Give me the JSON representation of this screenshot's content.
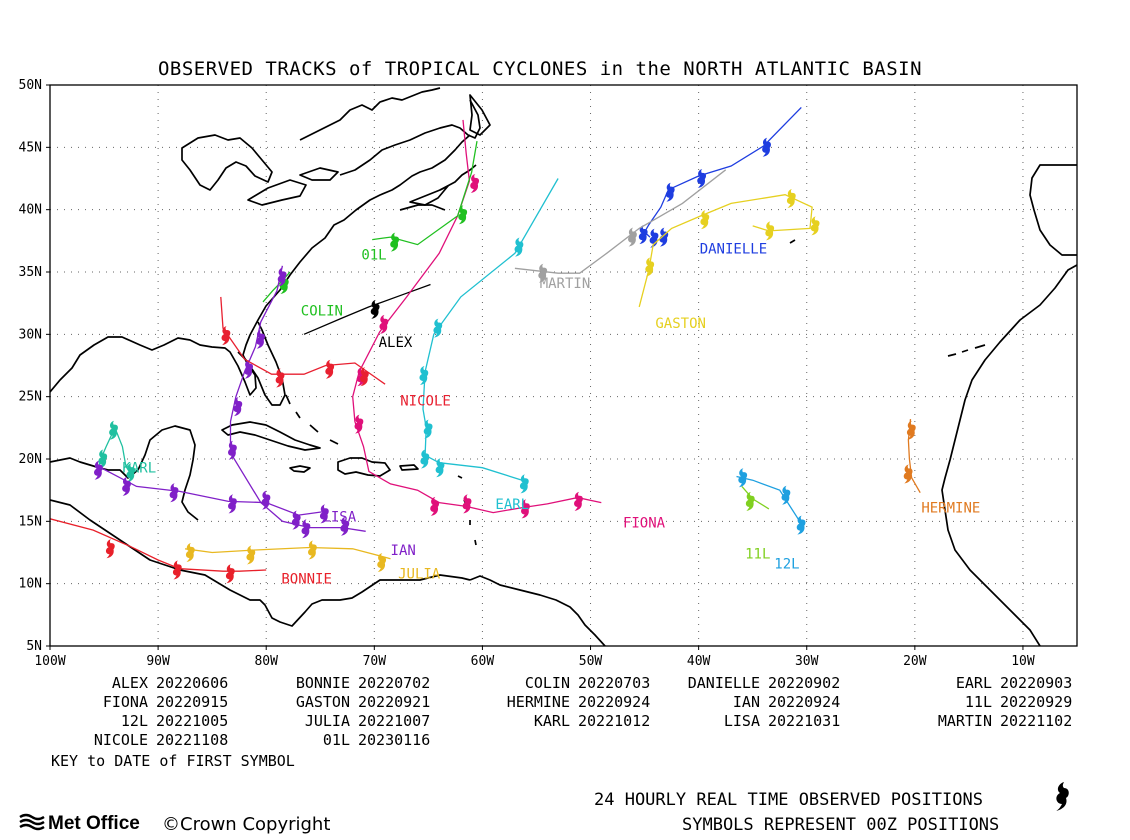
{
  "title": "OBSERVED TRACKS of TROPICAL CYCLONES in the NORTH ATLANTIC BASIN",
  "map": {
    "lon_range": [
      -100,
      -5
    ],
    "lat_range": [
      5,
      50
    ],
    "lon_ticks": [
      "100W",
      "90W",
      "80W",
      "70W",
      "60W",
      "50W",
      "40W",
      "30W",
      "20W",
      "10W"
    ],
    "lat_ticks": [
      "50N",
      "45N",
      "40N",
      "35N",
      "30N",
      "25N",
      "20N",
      "15N",
      "10N",
      "5N"
    ],
    "grid": true
  },
  "storms": [
    {
      "name": "ALEX",
      "color": "#000000",
      "label_pos": [
        -69.6,
        29.0
      ],
      "track": [
        [
          -76.5,
          30.0
        ],
        [
          -73.0,
          31.3
        ],
        [
          -70.5,
          32.2
        ],
        [
          -67.0,
          33.3
        ],
        [
          -64.8,
          34.0
        ]
      ],
      "symbols": [
        [
          -70.0,
          32.2
        ]
      ]
    },
    {
      "name": "BONNIE",
      "color": "#e8202a",
      "label_pos": [
        -78.6,
        10.0
      ],
      "track": [
        [
          -100,
          15.2
        ],
        [
          -96,
          14.3
        ],
        [
          -92.6,
          13.0
        ],
        [
          -90,
          11.9
        ],
        [
          -88,
          11.2
        ],
        [
          -84,
          11.0
        ],
        [
          -82.5,
          11.0
        ],
        [
          -80,
          11.1
        ]
      ],
      "symbols": [
        [
          -94.5,
          13.0
        ],
        [
          -88.3,
          11.3
        ],
        [
          -83.4,
          11.0
        ]
      ]
    },
    {
      "name": "COLIN",
      "color": "#20c020",
      "label_pos": [
        -76.8,
        31.5
      ],
      "track": [
        [
          -80.3,
          32.6
        ],
        [
          -79.4,
          33.5
        ],
        [
          -78.5,
          34.3
        ],
        [
          -77.8,
          35.0
        ]
      ],
      "symbols": [
        [
          -78.4,
          34.2
        ]
      ]
    },
    {
      "name": "DANIELLE",
      "color": "#1e3de0",
      "label_pos": [
        -39.9,
        36.5
      ],
      "track": [
        [
          -44.5,
          37.8
        ],
        [
          -45.0,
          38.2
        ],
        [
          -44.6,
          38.8
        ],
        [
          -43.5,
          40.2
        ],
        [
          -42.8,
          41.6
        ],
        [
          -40.0,
          42.7
        ],
        [
          -37.0,
          43.5
        ],
        [
          -34.0,
          45.1
        ],
        [
          -30.5,
          48.2
        ]
      ],
      "symbols": [
        [
          -45.2,
          38.2
        ],
        [
          -44.2,
          37.9
        ],
        [
          -43.3,
          38.0
        ],
        [
          -42.7,
          41.6
        ],
        [
          -39.8,
          42.7
        ],
        [
          -33.8,
          45.2
        ]
      ]
    },
    {
      "name": "EARL",
      "color": "#20c0d0",
      "label_pos": [
        -58.8,
        16.0
      ],
      "track": [
        [
          -56.0,
          18.2
        ],
        [
          -60.0,
          19.3
        ],
        [
          -64.0,
          19.7
        ],
        [
          -65.3,
          20.3
        ],
        [
          -65.2,
          22.5
        ],
        [
          -65.5,
          24.0
        ],
        [
          -65.3,
          27.0
        ],
        [
          -64.5,
          30.0
        ],
        [
          -62.0,
          33.0
        ],
        [
          -57.0,
          36.5
        ],
        [
          -53.0,
          42.5
        ]
      ],
      "symbols": [
        [
          -56.2,
          18.2
        ],
        [
          -64.0,
          19.5
        ],
        [
          -65.4,
          20.2
        ],
        [
          -65.1,
          22.6
        ],
        [
          -65.5,
          26.9
        ],
        [
          -64.2,
          30.7
        ],
        [
          -56.7,
          37.2
        ]
      ]
    },
    {
      "name": "FIONA",
      "color": "#e0107a",
      "label_pos": [
        -47.0,
        14.5
      ],
      "track": [
        [
          -49.0,
          16.5
        ],
        [
          -51.2,
          16.9
        ],
        [
          -54.0,
          16.4
        ],
        [
          -56.3,
          16.1
        ],
        [
          -59.0,
          15.7
        ],
        [
          -61.5,
          16.2
        ],
        [
          -64.0,
          16.5
        ],
        [
          -66.0,
          17.5
        ],
        [
          -68.5,
          18.0
        ],
        [
          -70.5,
          19.0
        ],
        [
          -71.0,
          21.0
        ],
        [
          -71.8,
          23.0
        ],
        [
          -72.0,
          25.0
        ],
        [
          -71.4,
          27.0
        ],
        [
          -69.5,
          30.2
        ],
        [
          -67.0,
          33.0
        ],
        [
          -64.0,
          36.5
        ],
        [
          -62.3,
          39.5
        ],
        [
          -61.2,
          42.3
        ],
        [
          -61.5,
          44.5
        ],
        [
          -61.8,
          47.2
        ]
      ],
      "symbols": [
        [
          -51.2,
          16.8
        ],
        [
          -56.1,
          16.2
        ],
        [
          -61.5,
          16.6
        ],
        [
          -64.5,
          16.4
        ],
        [
          -71.5,
          23.0
        ],
        [
          -71.3,
          26.8
        ],
        [
          -69.2,
          31.0
        ],
        [
          -60.8,
          42.3
        ]
      ]
    },
    {
      "name": "GASTON",
      "color": "#e6d020",
      "label_pos": [
        -44.0,
        30.5
      ],
      "track": [
        [
          -45.5,
          32.2
        ],
        [
          -44.6,
          35.2
        ],
        [
          -44.2,
          37.2
        ],
        [
          -42.5,
          38.5
        ],
        [
          -39.8,
          39.5
        ],
        [
          -37.0,
          40.5
        ],
        [
          -32.0,
          41.2
        ],
        [
          -29.5,
          40.2
        ],
        [
          -29.7,
          38.5
        ],
        [
          -33.5,
          38.3
        ],
        [
          -35.0,
          38.7
        ]
      ],
      "symbols": [
        [
          -44.6,
          35.6
        ],
        [
          -39.5,
          39.4
        ],
        [
          -31.5,
          41.1
        ],
        [
          -29.3,
          38.9
        ],
        [
          -33.5,
          38.5
        ]
      ]
    },
    {
      "name": "HERMINE",
      "color": "#e07a20",
      "label_pos": [
        -19.4,
        15.7
      ],
      "track": [
        [
          -19.5,
          17.3
        ],
        [
          -20.3,
          18.5
        ],
        [
          -20.5,
          20.0
        ],
        [
          -20.6,
          21.5
        ],
        [
          -20.4,
          23.2
        ]
      ],
      "symbols": [
        [
          -20.7,
          19.0
        ],
        [
          -20.4,
          22.5
        ]
      ]
    },
    {
      "name": "IAN",
      "color": "#8020c8",
      "label_pos": [
        -68.5,
        12.3
      ],
      "track": [
        [
          -70.8,
          14.2
        ],
        [
          -73.0,
          14.5
        ],
        [
          -76.0,
          14.5
        ],
        [
          -78.5,
          15.0
        ],
        [
          -80.5,
          16.5
        ],
        [
          -83.3,
          20.5
        ],
        [
          -83.3,
          23.0
        ],
        [
          -82.8,
          25.0
        ],
        [
          -82.0,
          27.0
        ],
        [
          -81.0,
          29.0
        ],
        [
          -80.5,
          31.0
        ],
        [
          -79.0,
          33.5
        ],
        [
          -78.5,
          35.5
        ]
      ],
      "symbols": [
        [
          -72.8,
          14.8
        ],
        [
          -76.4,
          14.6
        ],
        [
          -83.2,
          20.9
        ],
        [
          -82.7,
          24.4
        ],
        [
          -81.7,
          27.4
        ],
        [
          -80.6,
          29.8
        ],
        [
          -78.6,
          34.8
        ]
      ]
    },
    {
      "name": "JULIA",
      "color": "#e8b820",
      "label_pos": [
        -67.8,
        10.4
      ],
      "track": [
        [
          -68.5,
          12.0
        ],
        [
          -72.0,
          12.8
        ],
        [
          -76.0,
          12.9
        ],
        [
          -81.0,
          12.7
        ],
        [
          -85.0,
          12.5
        ],
        [
          -87.5,
          12.8
        ]
      ],
      "symbols": [
        [
          -69.4,
          11.9
        ],
        [
          -75.8,
          12.9
        ],
        [
          -81.5,
          12.5
        ],
        [
          -87.1,
          12.7
        ]
      ]
    },
    {
      "name": "KARL",
      "color": "#20c0a0",
      "label_pos": [
        -93.3,
        18.9
      ],
      "track": [
        [
          -92.0,
          19.0
        ],
        [
          -93.0,
          19.5
        ],
        [
          -93.3,
          21.0
        ],
        [
          -94.0,
          22.5
        ],
        [
          -94.8,
          21.0
        ],
        [
          -95.3,
          20.0
        ],
        [
          -95.6,
          19.0
        ]
      ],
      "symbols": [
        [
          -92.6,
          19.1
        ],
        [
          -94.2,
          22.5
        ],
        [
          -95.2,
          20.2
        ]
      ]
    },
    {
      "name": "LISA",
      "color": "#8020c8",
      "label_pos": [
        -74.8,
        15.0
      ],
      "track": [
        [
          -74.5,
          15.8
        ],
        [
          -77.0,
          15.5
        ],
        [
          -80.0,
          16.5
        ],
        [
          -83.5,
          16.6
        ],
        [
          -88.0,
          17.4
        ],
        [
          -92.0,
          17.8
        ],
        [
          -95.5,
          19.4
        ]
      ],
      "symbols": [
        [
          -74.7,
          15.8
        ],
        [
          -77.3,
          15.3
        ],
        [
          -80.1,
          16.9
        ],
        [
          -83.2,
          16.6
        ],
        [
          -88.6,
          17.5
        ],
        [
          -93.0,
          18.0
        ],
        [
          -95.6,
          19.3
        ]
      ]
    },
    {
      "name": "MARTIN",
      "color": "#a0a0a0",
      "label_pos": [
        -54.7,
        33.7
      ],
      "track": [
        [
          -57.0,
          35.3
        ],
        [
          -53.0,
          34.9
        ],
        [
          -51.0,
          34.9
        ],
        [
          -48.5,
          36.5
        ],
        [
          -45.5,
          38.5
        ],
        [
          -41.5,
          40.5
        ],
        [
          -37.5,
          43.2
        ]
      ],
      "symbols": [
        [
          -54.5,
          35.1
        ],
        [
          -46.2,
          38.0
        ]
      ]
    },
    {
      "name": "NICOLE",
      "color": "#e82030",
      "label_pos": [
        -67.6,
        24.3
      ],
      "track": [
        [
          -84.2,
          33.0
        ],
        [
          -84.0,
          30.5
        ],
        [
          -82.0,
          28.0
        ],
        [
          -79.5,
          26.8
        ],
        [
          -76.5,
          26.8
        ],
        [
          -74.5,
          27.5
        ],
        [
          -71.8,
          27.7
        ],
        [
          -69.0,
          26.0
        ]
      ],
      "symbols": [
        [
          -83.8,
          30.1
        ],
        [
          -78.8,
          26.7
        ],
        [
          -74.2,
          27.4
        ],
        [
          -71.0,
          26.8
        ]
      ]
    },
    {
      "name": "11L",
      "color": "#80d020",
      "label_pos": [
        -35.7,
        12.0
      ],
      "track": [
        [
          -33.5,
          16.0
        ],
        [
          -35.0,
          16.8
        ],
        [
          -36.0,
          17.8
        ]
      ],
      "symbols": [
        [
          -35.3,
          16.8
        ]
      ]
    },
    {
      "name": "12L",
      "color": "#1ea0e0",
      "label_pos": [
        -33.0,
        11.2
      ],
      "track": [
        [
          -30.5,
          14.8
        ],
        [
          -32.5,
          17.5
        ],
        [
          -35.0,
          18.3
        ],
        [
          -36.5,
          18.6
        ]
      ],
      "symbols": [
        [
          -36.0,
          18.7
        ],
        [
          -32.0,
          17.3
        ],
        [
          -30.6,
          14.9
        ]
      ]
    },
    {
      "name": "01L",
      "color": "#20c020",
      "label_pos": [
        -71.2,
        36.0
      ],
      "track": [
        [
          -70.2,
          37.6
        ],
        [
          -68.5,
          37.8
        ],
        [
          -66.0,
          37.2
        ],
        [
          -62.3,
          39.5
        ],
        [
          -61.0,
          43.0
        ],
        [
          -60.5,
          45.5
        ]
      ],
      "symbols": [
        [
          -68.2,
          37.6
        ],
        [
          -61.9,
          39.8
        ]
      ]
    }
  ],
  "key_rows": [
    [
      {
        "name": "ALEX",
        "date": "20220606"
      },
      {
        "name": "BONNIE",
        "date": "20220702"
      },
      {
        "name": "COLIN",
        "date": "20220703"
      },
      {
        "name": "DANIELLE",
        "date": "20220902"
      },
      {
        "name": "EARL",
        "date": "20220903"
      }
    ],
    [
      {
        "name": "FIONA",
        "date": "20220915"
      },
      {
        "name": "GASTON",
        "date": "20220921"
      },
      {
        "name": "HERMINE",
        "date": "20220924"
      },
      {
        "name": "IAN",
        "date": "20220924"
      },
      {
        "name": "11L",
        "date": "20220929"
      }
    ],
    [
      {
        "name": "12L",
        "date": "20221005"
      },
      {
        "name": "JULIA",
        "date": "20221007"
      },
      {
        "name": "KARL",
        "date": "20221012"
      },
      {
        "name": "LISA",
        "date": "20221031"
      },
      {
        "name": "MARTIN",
        "date": "20221102"
      }
    ],
    [
      {
        "name": "NICOLE",
        "date": "20221108"
      },
      {
        "name": "01L",
        "date": "20230116"
      }
    ]
  ],
  "key_caption": "KEY to DATE of FIRST SYMBOL",
  "footer": {
    "line1": "24 HOURLY REAL TIME OBSERVED POSITIONS",
    "line2": "SYMBOLS REPRESENT 00Z POSITIONS",
    "logo": "Met Office",
    "copyright": "©Crown Copyright",
    "symbol_icon": "hurricane-symbol-icon"
  }
}
